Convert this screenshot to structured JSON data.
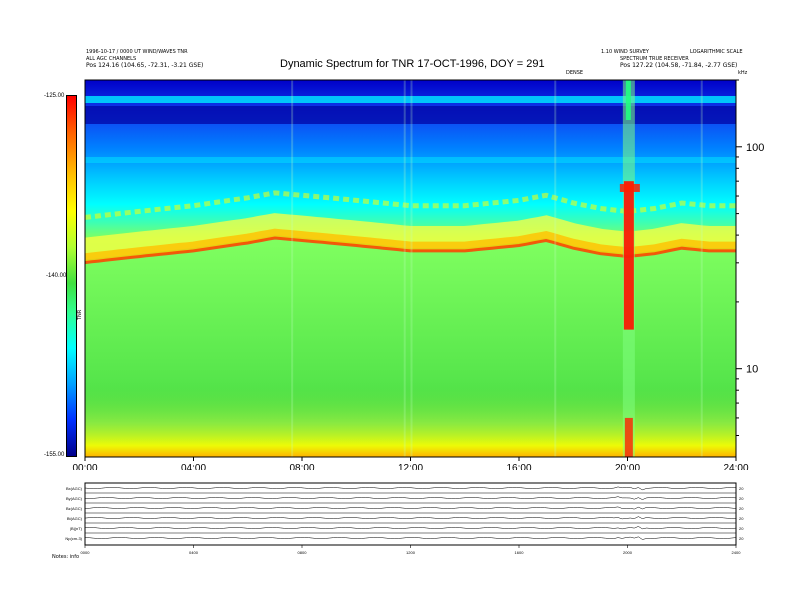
{
  "header": {
    "title": "Dynamic Spectrum for TNR 17-OCT-1996, DOY = 291",
    "left_line1": "1996-10-17 / 0000 UT  WIND/WAVES TNR",
    "left_line2": "ALL AGC CHANNELS",
    "left_pos": "Pos   124.16 (104.65, -72.31, -3.21 GSE)",
    "right_line1": "1.10 WIND SURVEY",
    "right_line2": "LOGARITHMIC SCALE",
    "right_line3": "SPECTRUM TRUE RECEIVER",
    "right_pos": "Pos   127.22 (104.58, -71.84, -2.77 GSE)",
    "center_small": "DENSE",
    "corner_right": "kHz"
  },
  "colorbar": {
    "max_label": "-125.00",
    "mid_label": "-140.00",
    "min_label": "-155.00",
    "axis_label": "TNR"
  },
  "chart_data": {
    "type": "heatmap",
    "title": "Dynamic Spectrum for TNR 17-OCT-1996, DOY = 291",
    "x_ticks": [
      "00:00",
      "04:00",
      "08:00",
      "12:00",
      "16:00",
      "20:00",
      "24:00"
    ],
    "xlim": [
      0,
      24
    ],
    "y_scale": "log",
    "y_ticks": [
      10,
      100
    ],
    "y_unit": "kHz",
    "ylim": [
      4,
      200
    ],
    "color_scale_db": [
      -155,
      -125
    ],
    "plasma_line_khz": [
      [
        0,
        31
      ],
      [
        2,
        33
      ],
      [
        4,
        35
      ],
      [
        6,
        38
      ],
      [
        7,
        40
      ],
      [
        8,
        39
      ],
      [
        10,
        37
      ],
      [
        12,
        35
      ],
      [
        14,
        35
      ],
      [
        16,
        37
      ],
      [
        17,
        39
      ],
      [
        18,
        36
      ],
      [
        19,
        34
      ],
      [
        20,
        33
      ],
      [
        21,
        34
      ],
      [
        22,
        36
      ],
      [
        23,
        35
      ],
      [
        24,
        35
      ]
    ],
    "burst_time_h": 20.05
  },
  "bottom_panel": {
    "rows": [
      {
        "label": "Bx(AGC)",
        "scale": "20"
      },
      {
        "label": "By(AGC)",
        "scale": "20"
      },
      {
        "label": "Bz(AGC)",
        "scale": "20"
      },
      {
        "label": "Bt(AGC)",
        "scale": "20"
      },
      {
        "label": "|B|(nT)",
        "scale": "20"
      },
      {
        "label": "Np(cm-3)",
        "scale": "20"
      }
    ],
    "x_ticks": [
      "0000",
      "0400",
      "0800",
      "1200",
      "1600",
      "2000",
      "2400"
    ],
    "footer_label": "Notes:  info"
  }
}
